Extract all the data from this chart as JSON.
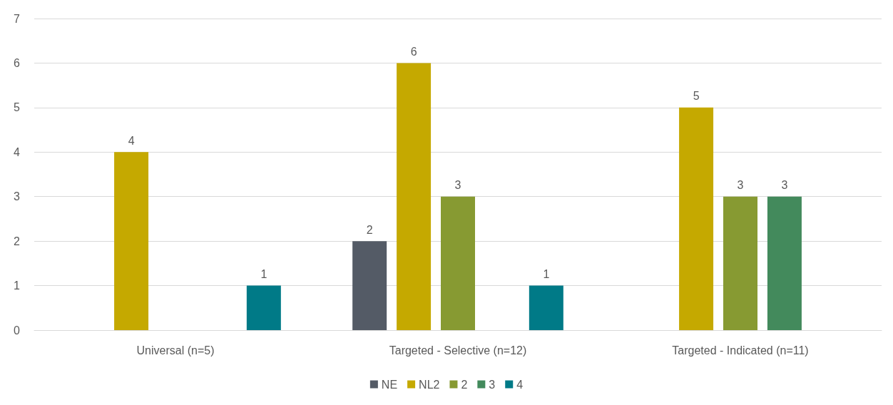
{
  "chart_data": {
    "type": "bar",
    "categories": [
      "Universal (n=5)",
      "Targeted - Selective (n=12)",
      "Targeted - Indicated (n=11)"
    ],
    "series": [
      {
        "name": "NE",
        "color": "#545b66",
        "values": [
          null,
          2,
          null
        ]
      },
      {
        "name": "NL2",
        "color": "#c5a900",
        "values": [
          4,
          6,
          5
        ]
      },
      {
        "name": "2",
        "color": "#879a32",
        "values": [
          null,
          3,
          3
        ]
      },
      {
        "name": "3",
        "color": "#438a5c",
        "values": [
          null,
          null,
          3
        ]
      },
      {
        "name": "4",
        "color": "#007a87",
        "values": [
          1,
          1,
          null
        ]
      }
    ],
    "ylim": [
      0,
      7
    ],
    "yticks": [
      0,
      1,
      2,
      3,
      4,
      5,
      6,
      7
    ],
    "grid": "y",
    "legend": "bottom",
    "data_labels": true
  }
}
